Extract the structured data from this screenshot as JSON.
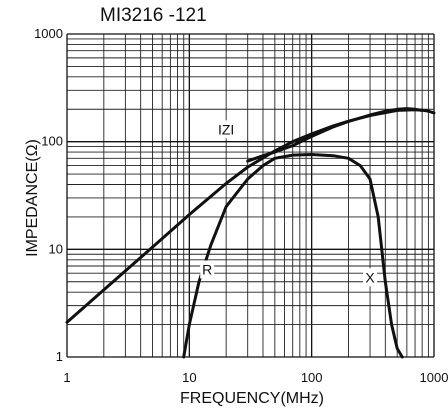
{
  "chart_data": {
    "type": "line",
    "title": "MI3216 -121",
    "xlabel": "FREQUENCY(MHz)",
    "ylabel": "IMPEDANCE(Ω)",
    "xscale": "log",
    "yscale": "log",
    "xlim": [
      1,
      1000
    ],
    "ylim": [
      1,
      1000
    ],
    "grid": true,
    "x_ticks": [
      {
        "value": 1,
        "label": "1"
      },
      {
        "value": 10,
        "label": "10"
      },
      {
        "value": 100,
        "label": "100"
      },
      {
        "value": 1000,
        "label": "1000"
      }
    ],
    "y_ticks": [
      {
        "value": 1,
        "label": "1"
      },
      {
        "value": 10,
        "label": "10"
      },
      {
        "value": 100,
        "label": "100"
      },
      {
        "value": 1000,
        "label": "1000"
      }
    ],
    "series": [
      {
        "name": "IZI",
        "label_at": [
          20,
          130
        ],
        "x": [
          1,
          2,
          5,
          10,
          20,
          30,
          50,
          70,
          100,
          150,
          200,
          300,
          500,
          700,
          800,
          900,
          1000
        ],
        "y": [
          2.1,
          4.2,
          10.5,
          21,
          41,
          58,
          82,
          100,
          118,
          140,
          155,
          175,
          195,
          198,
          196,
          192,
          185
        ]
      },
      {
        "name": "R",
        "label_at": [
          14,
          6.5
        ],
        "x": [
          9,
          10,
          12,
          15,
          20,
          30,
          40,
          50,
          70,
          100,
          150,
          200,
          250,
          300,
          350,
          400,
          450,
          500,
          550
        ],
        "y": [
          1,
          2,
          5,
          11,
          25,
          45,
          60,
          70,
          75,
          76,
          74,
          70,
          60,
          45,
          20,
          5,
          2,
          1.2,
          1
        ]
      },
      {
        "name": "X",
        "label_at": [
          300,
          5.5
        ],
        "x": [
          30,
          40,
          50,
          70,
          100,
          150,
          200,
          300,
          400,
          500,
          600,
          700,
          800
        ],
        "y": [
          66,
          74,
          80,
          92,
          112,
          137,
          154,
          177,
          192,
          200,
          203,
          200,
          195
        ]
      }
    ]
  }
}
